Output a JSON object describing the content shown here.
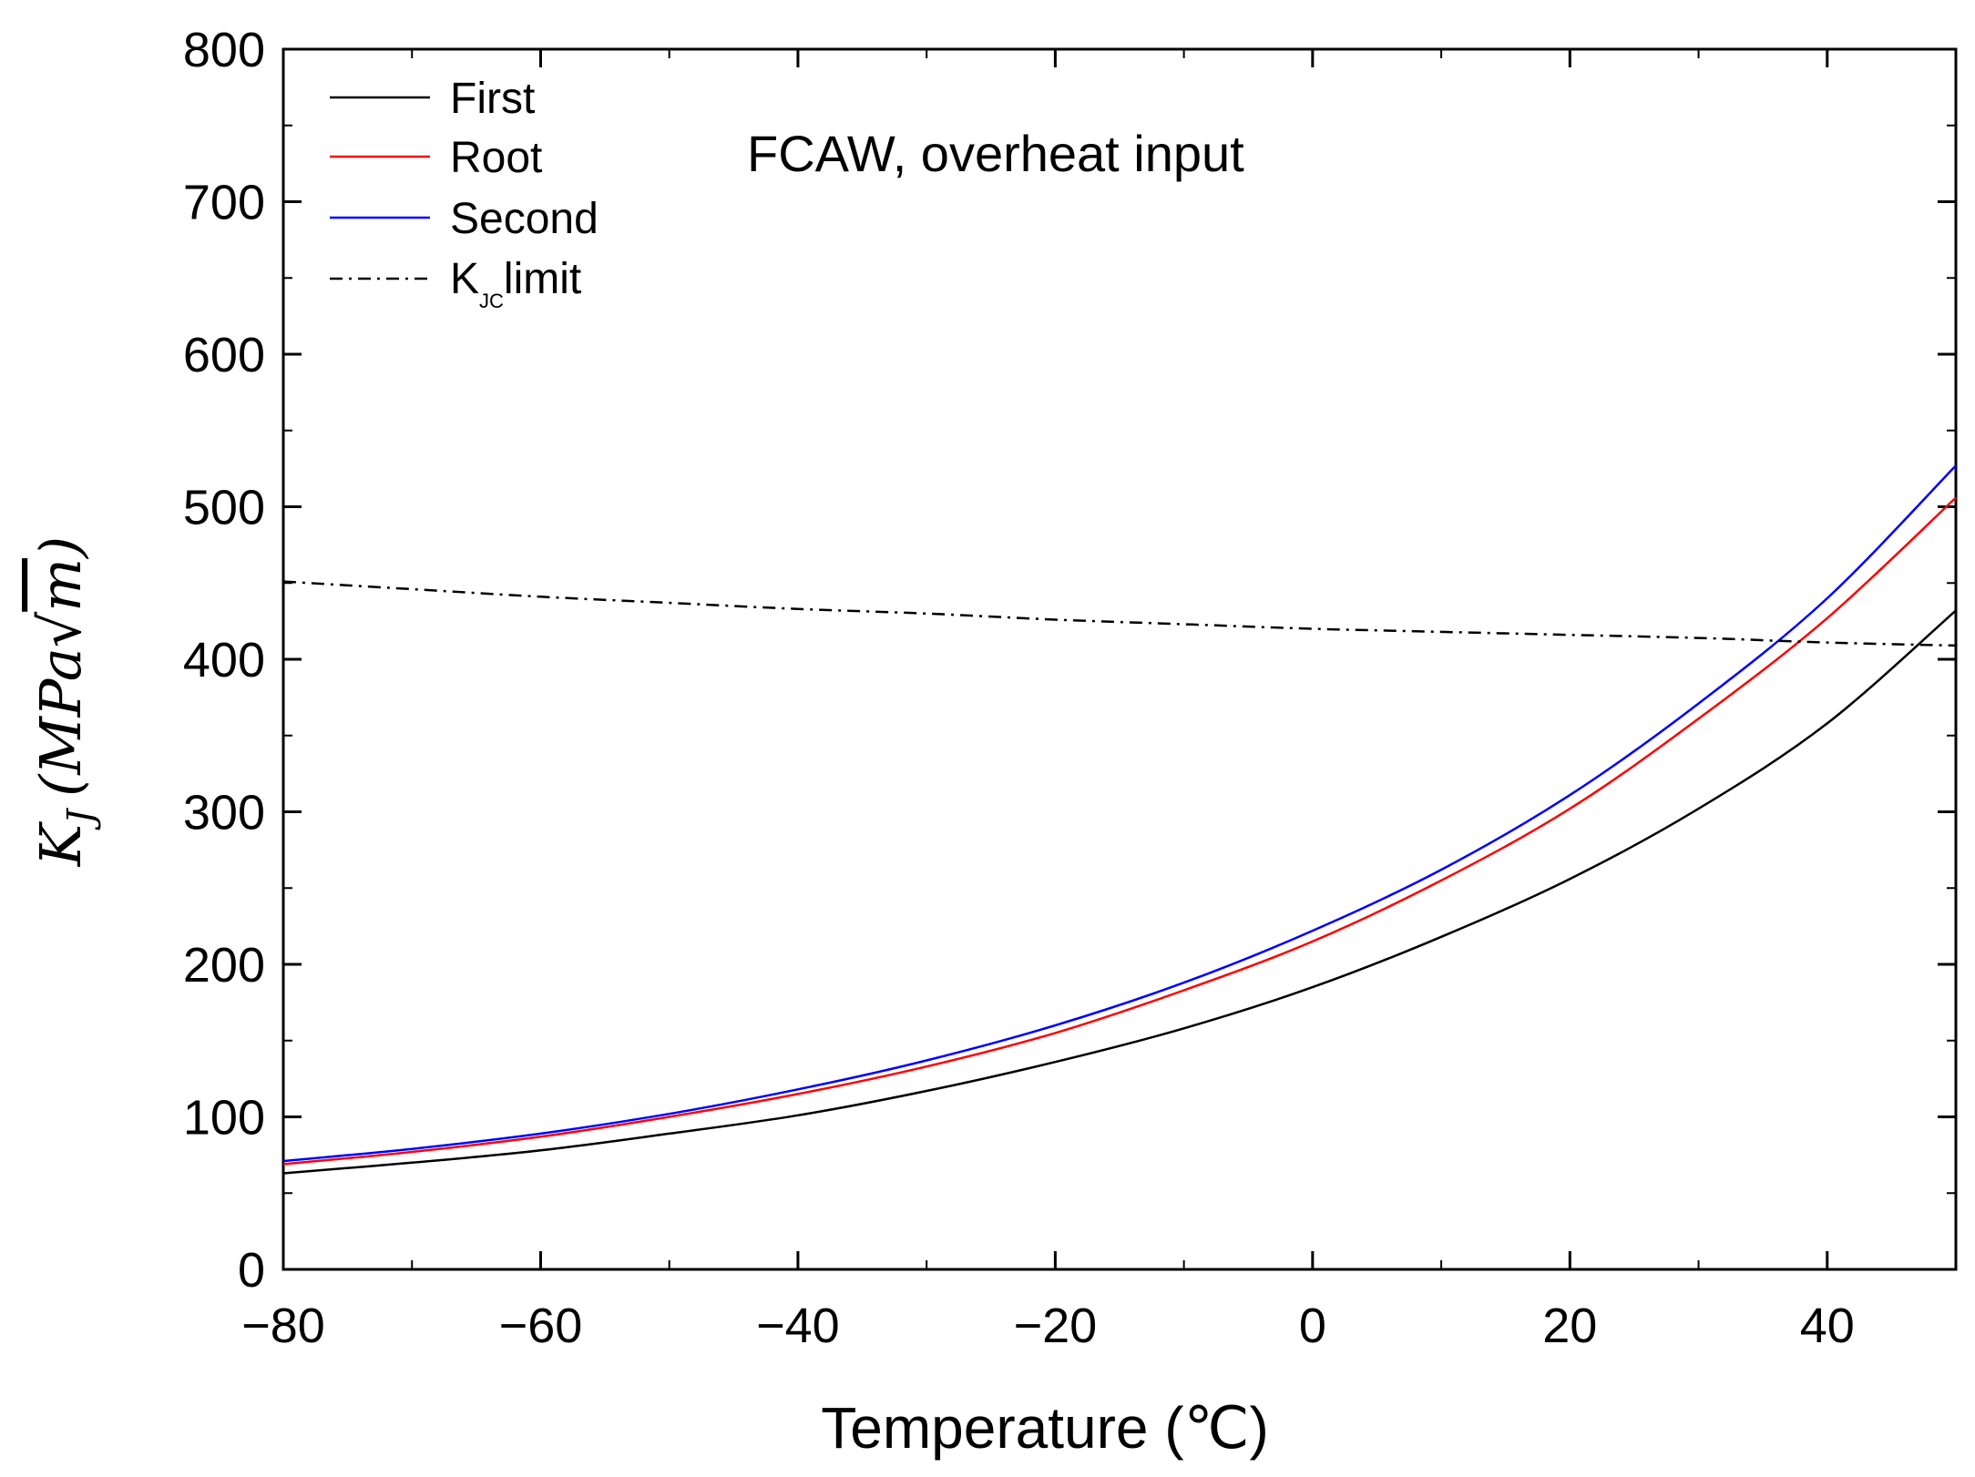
{
  "chart_data": {
    "type": "line",
    "title": "",
    "annotation": "FCAW, overheat input",
    "xlabel": "Temperature (℃)",
    "ylabel": {
      "K": "K",
      "sub": "J",
      "units": "(MPa",
      "root_symbol": "√",
      "root_var": "m",
      "close": ")"
    },
    "xlim": [
      -80,
      50
    ],
    "ylim": [
      0,
      800
    ],
    "x_ticks": [
      -80,
      -60,
      -40,
      -20,
      0,
      20,
      40
    ],
    "x_tick_labels": [
      "−80",
      "−60",
      "−40",
      "−20",
      "0",
      "20",
      "40"
    ],
    "y_ticks": [
      0,
      100,
      200,
      300,
      400,
      500,
      600,
      700,
      800
    ],
    "y_tick_labels": [
      "0",
      "100",
      "200",
      "300",
      "400",
      "500",
      "600",
      "700",
      "800"
    ],
    "grid": false,
    "legend_position": "top-left",
    "x": [
      -80,
      -70,
      -60,
      -50,
      -40,
      -30,
      -20,
      -10,
      0,
      10,
      20,
      30,
      40,
      50
    ],
    "series": [
      {
        "name": "First",
        "color": "#000000",
        "dash": "solid",
        "values": [
          63,
          70,
          78,
          89,
          101,
          117,
          136,
          158,
          185,
          218,
          256,
          302,
          358,
          432
        ]
      },
      {
        "name": "Root",
        "color": "#ff0000",
        "dash": "solid",
        "values": [
          69,
          77,
          87,
          100,
          115,
          133,
          155,
          183,
          215,
          255,
          302,
          361,
          427,
          506
        ]
      },
      {
        "name": "Second",
        "color": "#0000ff",
        "dash": "solid",
        "values": [
          71,
          79,
          89,
          102,
          118,
          137,
          160,
          188,
          222,
          262,
          311,
          371,
          440,
          527
        ]
      },
      {
        "name": "K",
        "name_sub": "JC",
        "name_suffix": "limit",
        "color": "#000000",
        "dash": "dash-dot",
        "values": [
          451,
          446,
          441,
          437,
          433,
          430,
          426,
          423,
          420,
          418,
          416,
          414,
          411,
          409
        ]
      }
    ]
  }
}
